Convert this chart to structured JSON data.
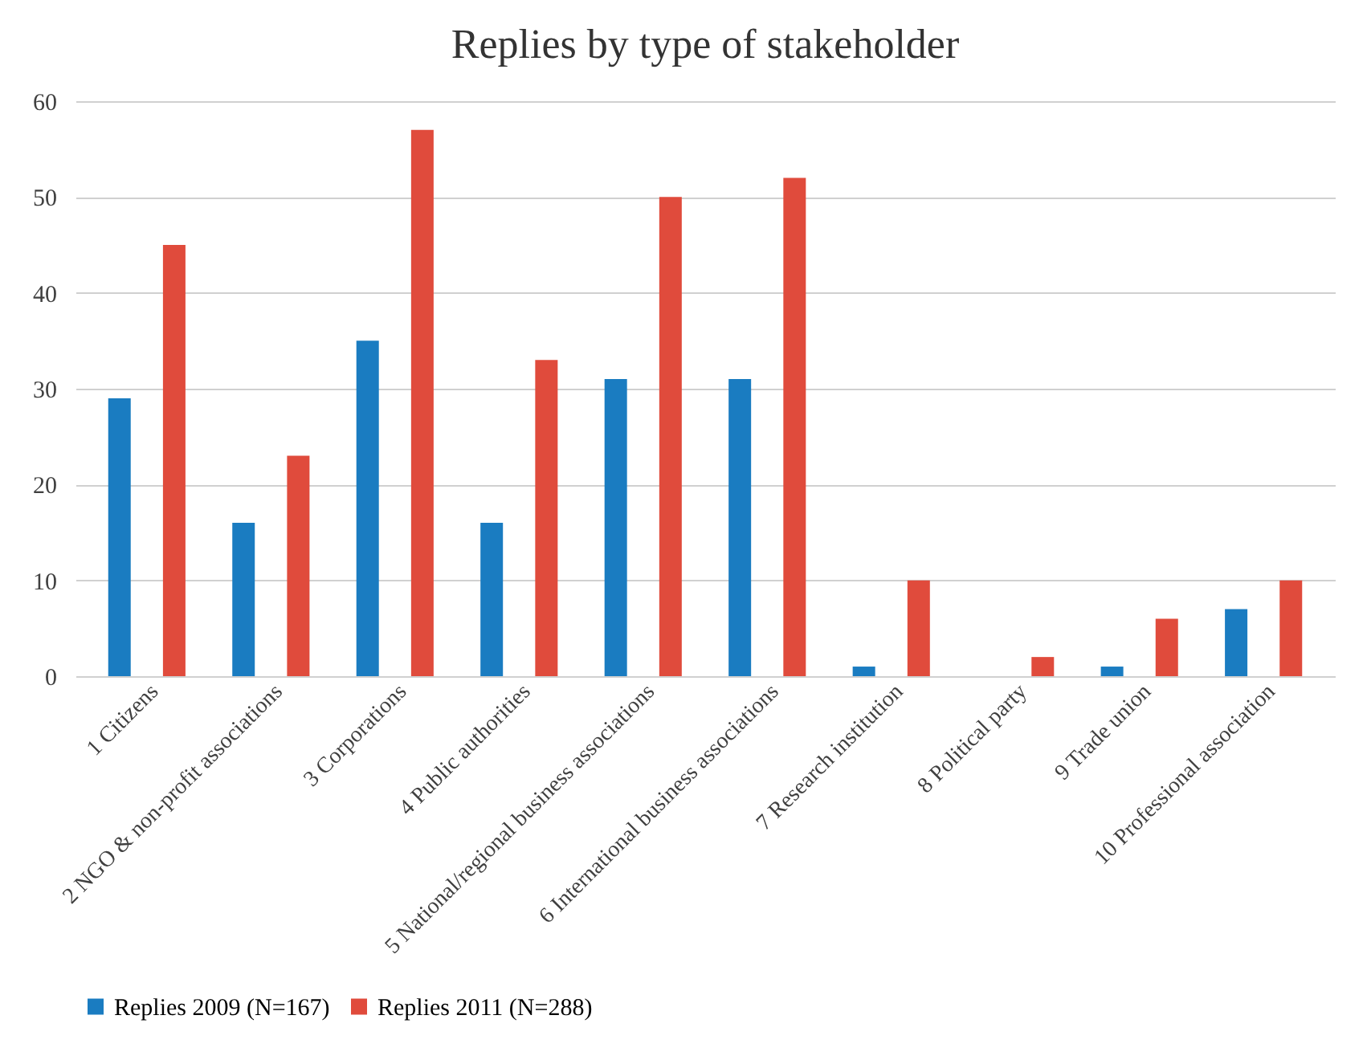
{
  "chart_data": {
    "type": "bar",
    "title": "Replies by type of stakeholder",
    "categories": [
      "1 Citizens",
      "2 NGO & non-profit associations",
      "3 Corporations",
      "4 Public authorities",
      "5 National/regional business associations",
      "6 International business associations",
      "7 Research institution",
      "8 Political party",
      "9 Trade union",
      "10 Professional association"
    ],
    "series": [
      {
        "name": "Replies 2009 (N=167)",
        "color": "#1a7cc1",
        "values": [
          29,
          16,
          35,
          16,
          31,
          31,
          1,
          0,
          1,
          7
        ]
      },
      {
        "name": "Replies 2011 (N=288)",
        "color": "#e04b3c",
        "values": [
          45,
          23,
          57,
          33,
          50,
          52,
          10,
          2,
          6,
          10
        ]
      }
    ],
    "ylim": [
      0,
      60
    ],
    "yticks": [
      0,
      10,
      20,
      30,
      40,
      50,
      60
    ],
    "grid": "y",
    "legend": "bottom"
  }
}
